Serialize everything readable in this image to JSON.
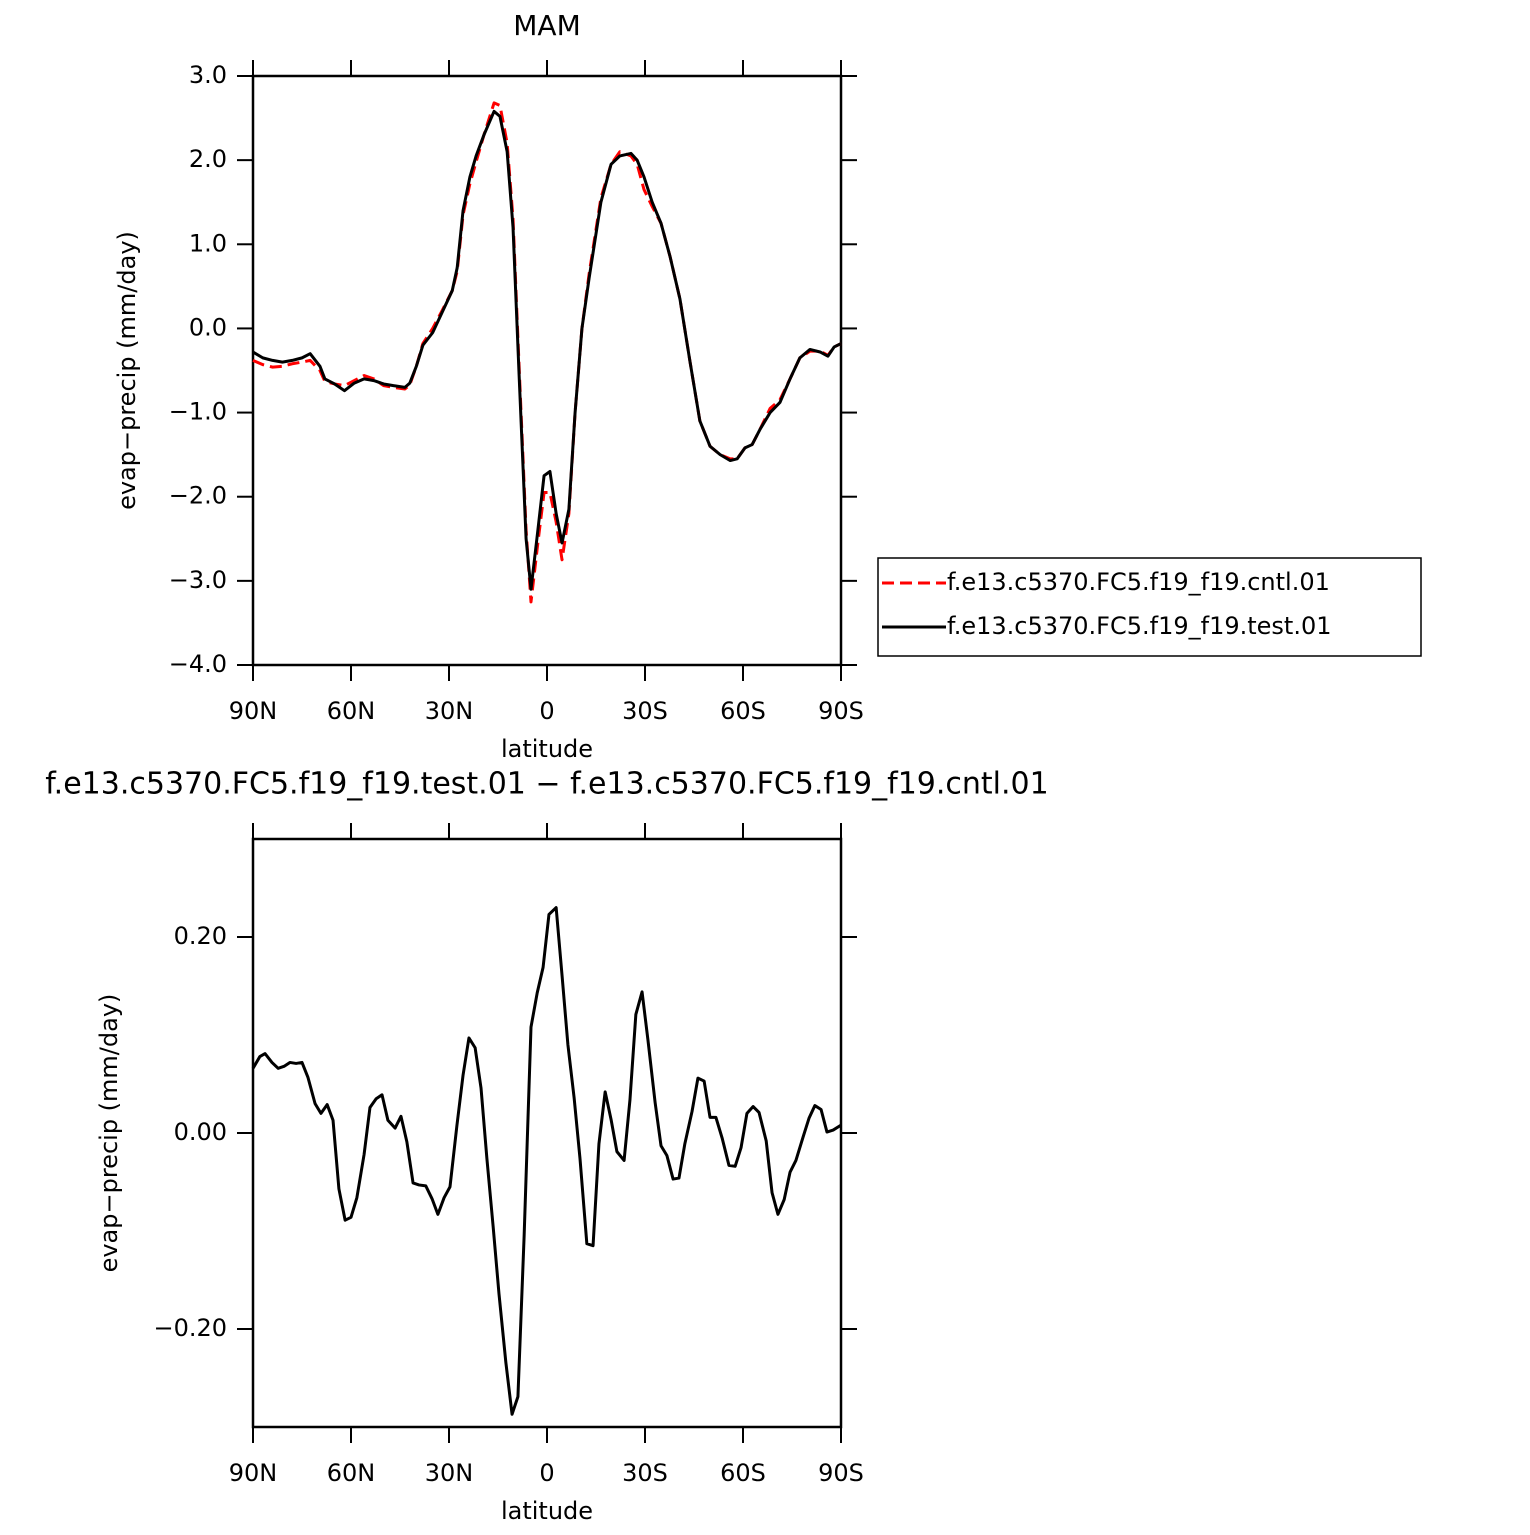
{
  "chart_data": [
    {
      "type": "line",
      "title": "MAM",
      "xlabel": "latitude",
      "ylabel": "evap−precip (mm/day)",
      "xlim": [
        90,
        -90
      ],
      "xticks": [
        {
          "value": 90,
          "label": "90N"
        },
        {
          "value": 60,
          "label": "60N"
        },
        {
          "value": 30,
          "label": "30N"
        },
        0,
        {
          "value": -30,
          "label": "30S"
        },
        {
          "value": -60,
          "label": "60S"
        },
        {
          "value": -90,
          "label": "90S"
        }
      ],
      "ylim": [
        -4,
        3
      ],
      "yticks": [
        {
          "value": -4,
          "label": "−4.0"
        },
        {
          "value": -3,
          "label": "−3.0"
        },
        {
          "value": -2,
          "label": "−2.0"
        },
        {
          "value": -1,
          "label": "−1.0"
        },
        {
          "value": 0,
          "label": "0.0"
        },
        {
          "value": 1,
          "label": "1.0"
        },
        {
          "value": 2,
          "label": "2.0"
        },
        {
          "value": 3,
          "label": "3.0"
        }
      ],
      "legend": "right",
      "x": [
        90,
        87,
        84,
        81,
        78,
        75,
        72.5,
        69.5,
        68,
        65,
        62,
        59,
        56,
        53,
        50,
        47,
        43.5,
        42,
        40,
        38,
        35,
        32,
        29,
        27.5,
        25.7,
        23.6,
        21.7,
        19.3,
        16.2,
        14.4,
        12.2,
        10.4,
        8.6,
        6.4,
        4.9,
        2.8,
        0.9,
        -0.9,
        -2.8,
        -4.6,
        -6.7,
        -8.6,
        -10.7,
        -12.9,
        -14.7,
        -16.5,
        -19.6,
        -22.3,
        -25.7,
        -27.6,
        -29.7,
        -32.2,
        -34.9,
        -37.7,
        -40.7,
        -43.8,
        -46.8,
        -49.9,
        -53,
        -56.1,
        -58.2,
        -60.6,
        -62.8,
        -65.2,
        -68.3,
        -71.3,
        -74.4,
        -77.4,
        -80.5,
        -83.6,
        -86,
        -87.9,
        -90
      ],
      "series": [
        {
          "name": "f.e13.c5370.FC5.f19_f19.cntl.01",
          "color": "#ff0000",
          "line_style": "dashed",
          "values": [
            -0.38,
            -0.43,
            -0.46,
            -0.45,
            -0.42,
            -0.4,
            -0.38,
            -0.5,
            -0.63,
            -0.66,
            -0.68,
            -0.62,
            -0.56,
            -0.6,
            -0.68,
            -0.7,
            -0.72,
            -0.67,
            -0.45,
            -0.18,
            0.0,
            0.22,
            0.45,
            0.68,
            1.35,
            1.72,
            1.98,
            2.3,
            2.68,
            2.65,
            2.2,
            1.3,
            -0.4,
            -2.4,
            -3.25,
            -2.55,
            -1.95,
            -1.95,
            -2.3,
            -2.75,
            -2.2,
            -1.0,
            0.0,
            0.65,
            1.1,
            1.55,
            1.95,
            2.1,
            2.05,
            1.95,
            1.65,
            1.45,
            1.25,
            0.85,
            0.35,
            -0.4,
            -1.1,
            -1.4,
            -1.5,
            -1.55,
            -1.55,
            -1.42,
            -1.38,
            -1.2,
            -0.95,
            -0.85,
            -0.6,
            -0.35,
            -0.27,
            -0.27,
            -0.32,
            -0.22,
            -0.18
          ]
        },
        {
          "name": "f.e13.c5370.FC5.f19_f19.test.01",
          "color": "#000000",
          "line_style": "solid",
          "values": [
            -0.28,
            -0.35,
            -0.38,
            -0.4,
            -0.38,
            -0.35,
            -0.3,
            -0.45,
            -0.6,
            -0.66,
            -0.74,
            -0.65,
            -0.6,
            -0.62,
            -0.66,
            -0.68,
            -0.7,
            -0.65,
            -0.45,
            -0.2,
            -0.05,
            0.2,
            0.45,
            0.72,
            1.4,
            1.8,
            2.05,
            2.3,
            2.58,
            2.52,
            2.1,
            1.2,
            -0.5,
            -2.5,
            -3.1,
            -2.4,
            -1.75,
            -1.7,
            -2.2,
            -2.55,
            -2.15,
            -1.0,
            0.0,
            0.6,
            1.05,
            1.5,
            1.95,
            2.05,
            2.08,
            2.0,
            1.8,
            1.5,
            1.25,
            0.85,
            0.35,
            -0.4,
            -1.1,
            -1.4,
            -1.5,
            -1.57,
            -1.55,
            -1.42,
            -1.38,
            -1.2,
            -1.0,
            -0.88,
            -0.6,
            -0.35,
            -0.25,
            -0.28,
            -0.33,
            -0.22,
            -0.18
          ]
        }
      ]
    },
    {
      "type": "line",
      "title": "f.e13.c5370.FC5.f19_f19.test.01  −  f.e13.c5370.FC5.f19_f19.cntl.01",
      "xlabel": "latitude",
      "ylabel": "evap−precip (mm/day)",
      "xlim": [
        90,
        -90
      ],
      "xticks": [
        {
          "value": 90,
          "label": "90N"
        },
        {
          "value": 60,
          "label": "60N"
        },
        {
          "value": 30,
          "label": "30N"
        },
        0,
        {
          "value": -30,
          "label": "30S"
        },
        {
          "value": -60,
          "label": "60S"
        },
        {
          "value": -90,
          "label": "90S"
        }
      ],
      "ylim": [
        -0.3,
        0.3
      ],
      "yticks": [
        {
          "value": -0.2,
          "label": "−0.20"
        },
        {
          "value": 0,
          "label": "0.00"
        },
        {
          "value": 0.2,
          "label": "0.20"
        }
      ],
      "color": "#000000",
      "x": [
        90,
        87.9,
        86.3,
        84.2,
        82.3,
        80.5,
        78.7,
        76.8,
        75,
        73.2,
        71,
        69.2,
        67.3,
        65.5,
        63.7,
        61.8,
        60,
        58.2,
        56,
        54.2,
        52.3,
        50.5,
        48.7,
        46.5,
        44.7,
        42.9,
        41,
        39.2,
        37.1,
        35.2,
        33.4,
        31.5,
        29.7,
        27.6,
        25.7,
        23.9,
        22,
        20.2,
        18.4,
        16.5,
        14.7,
        12.6,
        10.7,
        8.9,
        7.0,
        4.9,
        3.0,
        1.2,
        -0.6,
        -2.8,
        -4.6,
        -6.4,
        -8.3,
        -10.1,
        -12.2,
        -14.1,
        -15.9,
        -17.8,
        -19.6,
        -21.4,
        -23.6,
        -25.4,
        -27.2,
        -29.1,
        -30.9,
        -33.1,
        -34.9,
        -36.7,
        -38.6,
        -40.4,
        -42.2,
        -44.4,
        -46.2,
        -48.1,
        -49.9,
        -51.7,
        -53.6,
        -55.7,
        -57.6,
        -59.4,
        -61.2,
        -63.1,
        -64.9,
        -67.1,
        -68.9,
        -70.7,
        -72.6,
        -74.4,
        -76.2,
        -78.4,
        -80.2,
        -82.0,
        -83.9,
        -85.7,
        -87.6,
        -90
      ],
      "values": [
        0.066,
        0.078,
        0.081,
        0.072,
        0.066,
        0.068,
        0.072,
        0.071,
        0.072,
        0.057,
        0.03,
        0.02,
        0.029,
        0.013,
        -0.057,
        -0.089,
        -0.086,
        -0.066,
        -0.022,
        0.026,
        0.035,
        0.039,
        0.013,
        0.005,
        0.017,
        -0.009,
        -0.051,
        -0.053,
        -0.054,
        -0.067,
        -0.083,
        -0.066,
        -0.055,
        0.007,
        0.059,
        0.097,
        0.087,
        0.046,
        -0.026,
        -0.095,
        -0.164,
        -0.234,
        -0.287,
        -0.269,
        -0.105,
        0.108,
        0.143,
        0.169,
        0.223,
        0.23,
        0.161,
        0.09,
        0.036,
        -0.026,
        -0.113,
        -0.115,
        -0.011,
        0.042,
        0.014,
        -0.019,
        -0.028,
        0.034,
        0.121,
        0.144,
        0.095,
        0.031,
        -0.013,
        -0.023,
        -0.047,
        -0.046,
        -0.011,
        0.022,
        0.056,
        0.053,
        0.016,
        0.016,
        -0.005,
        -0.033,
        -0.034,
        -0.015,
        0.02,
        0.027,
        0.021,
        -0.008,
        -0.061,
        -0.083,
        -0.068,
        -0.04,
        -0.028,
        -0.004,
        0.015,
        0.028,
        0.024,
        0.001,
        0.003,
        0.008
      ]
    }
  ]
}
